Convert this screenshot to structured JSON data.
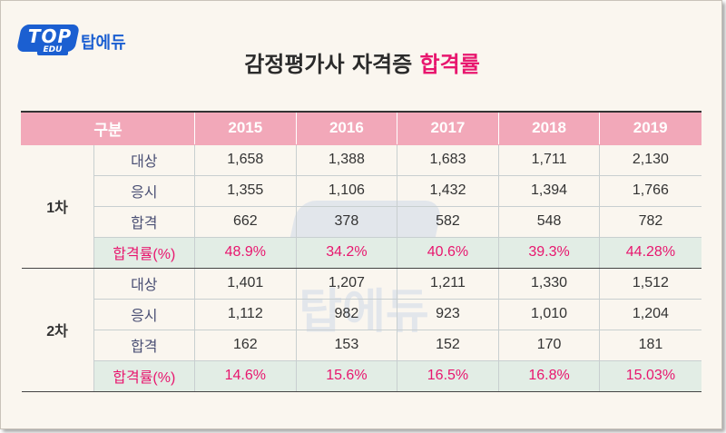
{
  "brand": {
    "logo_top": "TOP",
    "logo_edu": "EDU",
    "name": "탑에듀",
    "primary_color": "#1b5fd1"
  },
  "title": {
    "main": "감정평가사 자격증 ",
    "accent": "합격률",
    "accent_color": "#e8166e"
  },
  "table": {
    "header_bg": "#f2a8b9",
    "rate_bg": "#e2ede5",
    "corner_label": "구분",
    "years": [
      "2015",
      "2016",
      "2017",
      "2018",
      "2019"
    ],
    "sections": [
      {
        "label": "1차",
        "rows": [
          {
            "category": "대상",
            "values": [
              "1,658",
              "1,388",
              "1,683",
              "1,711",
              "2,130"
            ]
          },
          {
            "category": "응시",
            "values": [
              "1,355",
              "1,106",
              "1,432",
              "1,394",
              "1,766"
            ]
          },
          {
            "category": "합격",
            "values": [
              "662",
              "378",
              "582",
              "548",
              "782"
            ]
          },
          {
            "category": "합격률(%)",
            "values": [
              "48.9%",
              "34.2%",
              "40.6%",
              "39.3%",
              "44.28%"
            ]
          }
        ]
      },
      {
        "label": "2차",
        "rows": [
          {
            "category": "대상",
            "values": [
              "1,401",
              "1,207",
              "1,211",
              "1,330",
              "1,512"
            ]
          },
          {
            "category": "응시",
            "values": [
              "1,112",
              "982",
              "923",
              "1,010",
              "1,204"
            ]
          },
          {
            "category": "합격",
            "values": [
              "162",
              "153",
              "152",
              "170",
              "181"
            ]
          },
          {
            "category": "합격률(%)",
            "values": [
              "14.6%",
              "15.6%",
              "16.5%",
              "16.8%",
              "15.03%"
            ]
          }
        ]
      }
    ]
  }
}
